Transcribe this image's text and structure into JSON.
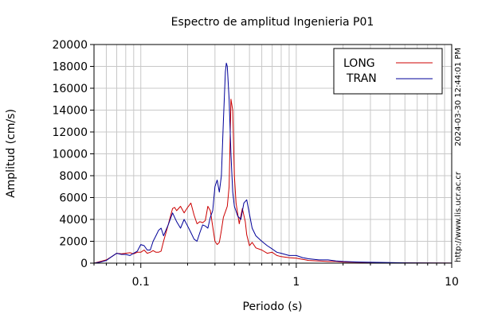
{
  "chart_data": {
    "type": "line",
    "title": "Espectro de amplitud Ingenieria P01",
    "xlabel": "Periodo (s)",
    "ylabel": "Amplitud (cm/s)",
    "x_scale": "log",
    "xlim": [
      0.05,
      10
    ],
    "ylim": [
      0,
      20000
    ],
    "x_ticks": [
      0.1,
      1,
      10
    ],
    "x_tick_labels": [
      "0.1",
      "1",
      "10"
    ],
    "y_ticks": [
      0,
      2000,
      4000,
      6000,
      8000,
      10000,
      12000,
      14000,
      16000,
      18000,
      20000
    ],
    "y_tick_labels": [
      "0",
      "2000",
      "4000",
      "6000",
      "8000",
      "10000",
      "12000",
      "14000",
      "16000",
      "18000",
      "20000"
    ],
    "grid": true,
    "legend_position": "top-right",
    "side_text_timestamp": "2024-03-30 12:44:01 PM",
    "side_text_url": "http://www.lis.ucr.ac.cr",
    "series": [
      {
        "name": "LONG",
        "color": "#cc0000",
        "x": [
          0.05,
          0.055,
          0.06,
          0.065,
          0.07,
          0.075,
          0.08,
          0.085,
          0.09,
          0.095,
          0.1,
          0.105,
          0.11,
          0.115,
          0.12,
          0.125,
          0.13,
          0.135,
          0.14,
          0.15,
          0.16,
          0.165,
          0.17,
          0.18,
          0.19,
          0.2,
          0.21,
          0.22,
          0.23,
          0.24,
          0.25,
          0.26,
          0.27,
          0.28,
          0.3,
          0.31,
          0.32,
          0.33,
          0.34,
          0.35,
          0.36,
          0.37,
          0.38,
          0.39,
          0.4,
          0.41,
          0.42,
          0.43,
          0.45,
          0.47,
          0.48,
          0.5,
          0.52,
          0.55,
          0.6,
          0.65,
          0.7,
          0.75,
          0.8,
          0.9,
          1.0,
          1.1,
          1.2,
          1.4,
          1.6,
          1.8,
          2.0,
          2.5,
          3.0,
          4.0,
          5.0,
          7.0,
          10.0
        ],
        "y": [
          0,
          150,
          300,
          600,
          900,
          850,
          900,
          950,
          850,
          1000,
          1000,
          1200,
          900,
          1000,
          1150,
          1000,
          1000,
          1100,
          2000,
          3500,
          5000,
          5100,
          4800,
          5200,
          4600,
          5100,
          5500,
          4400,
          3600,
          3800,
          3700,
          3900,
          5200,
          4800,
          2000,
          1700,
          1900,
          3000,
          4200,
          4700,
          5200,
          7000,
          15000,
          14000,
          8000,
          5500,
          4500,
          3600,
          5000,
          3800,
          2600,
          1600,
          1900,
          1400,
          1200,
          900,
          1000,
          700,
          600,
          500,
          450,
          350,
          250,
          200,
          150,
          150,
          100,
          80,
          50,
          30,
          30,
          20,
          10
        ]
      },
      {
        "name": "TRAN",
        "color": "#000099",
        "x": [
          0.05,
          0.055,
          0.06,
          0.065,
          0.07,
          0.075,
          0.08,
          0.085,
          0.09,
          0.095,
          0.1,
          0.105,
          0.11,
          0.115,
          0.12,
          0.125,
          0.13,
          0.135,
          0.14,
          0.15,
          0.16,
          0.17,
          0.18,
          0.19,
          0.2,
          0.21,
          0.22,
          0.23,
          0.24,
          0.25,
          0.26,
          0.27,
          0.28,
          0.29,
          0.3,
          0.31,
          0.32,
          0.33,
          0.34,
          0.35,
          0.355,
          0.36,
          0.37,
          0.38,
          0.39,
          0.4,
          0.42,
          0.44,
          0.46,
          0.48,
          0.5,
          0.52,
          0.55,
          0.6,
          0.65,
          0.7,
          0.75,
          0.8,
          0.9,
          1.0,
          1.1,
          1.2,
          1.4,
          1.6,
          1.8,
          2.0,
          2.5,
          3.0,
          4.0,
          5.0,
          7.0,
          10.0
        ],
        "y": [
          0,
          100,
          250,
          600,
          900,
          800,
          800,
          700,
          900,
          1100,
          1700,
          1600,
          1200,
          1200,
          2000,
          2500,
          3000,
          3200,
          2500,
          3500,
          4600,
          3800,
          3200,
          4000,
          3400,
          2800,
          2200,
          2000,
          2800,
          3500,
          3400,
          3200,
          4200,
          4800,
          7000,
          7600,
          6500,
          8000,
          13000,
          17500,
          18300,
          18000,
          15000,
          10000,
          6500,
          5200,
          4300,
          4000,
          5500,
          5800,
          4500,
          3200,
          2500,
          2000,
          1600,
          1300,
          1000,
          900,
          700,
          700,
          500,
          400,
          300,
          300,
          200,
          150,
          100,
          80,
          50,
          30,
          20,
          10
        ]
      }
    ]
  }
}
